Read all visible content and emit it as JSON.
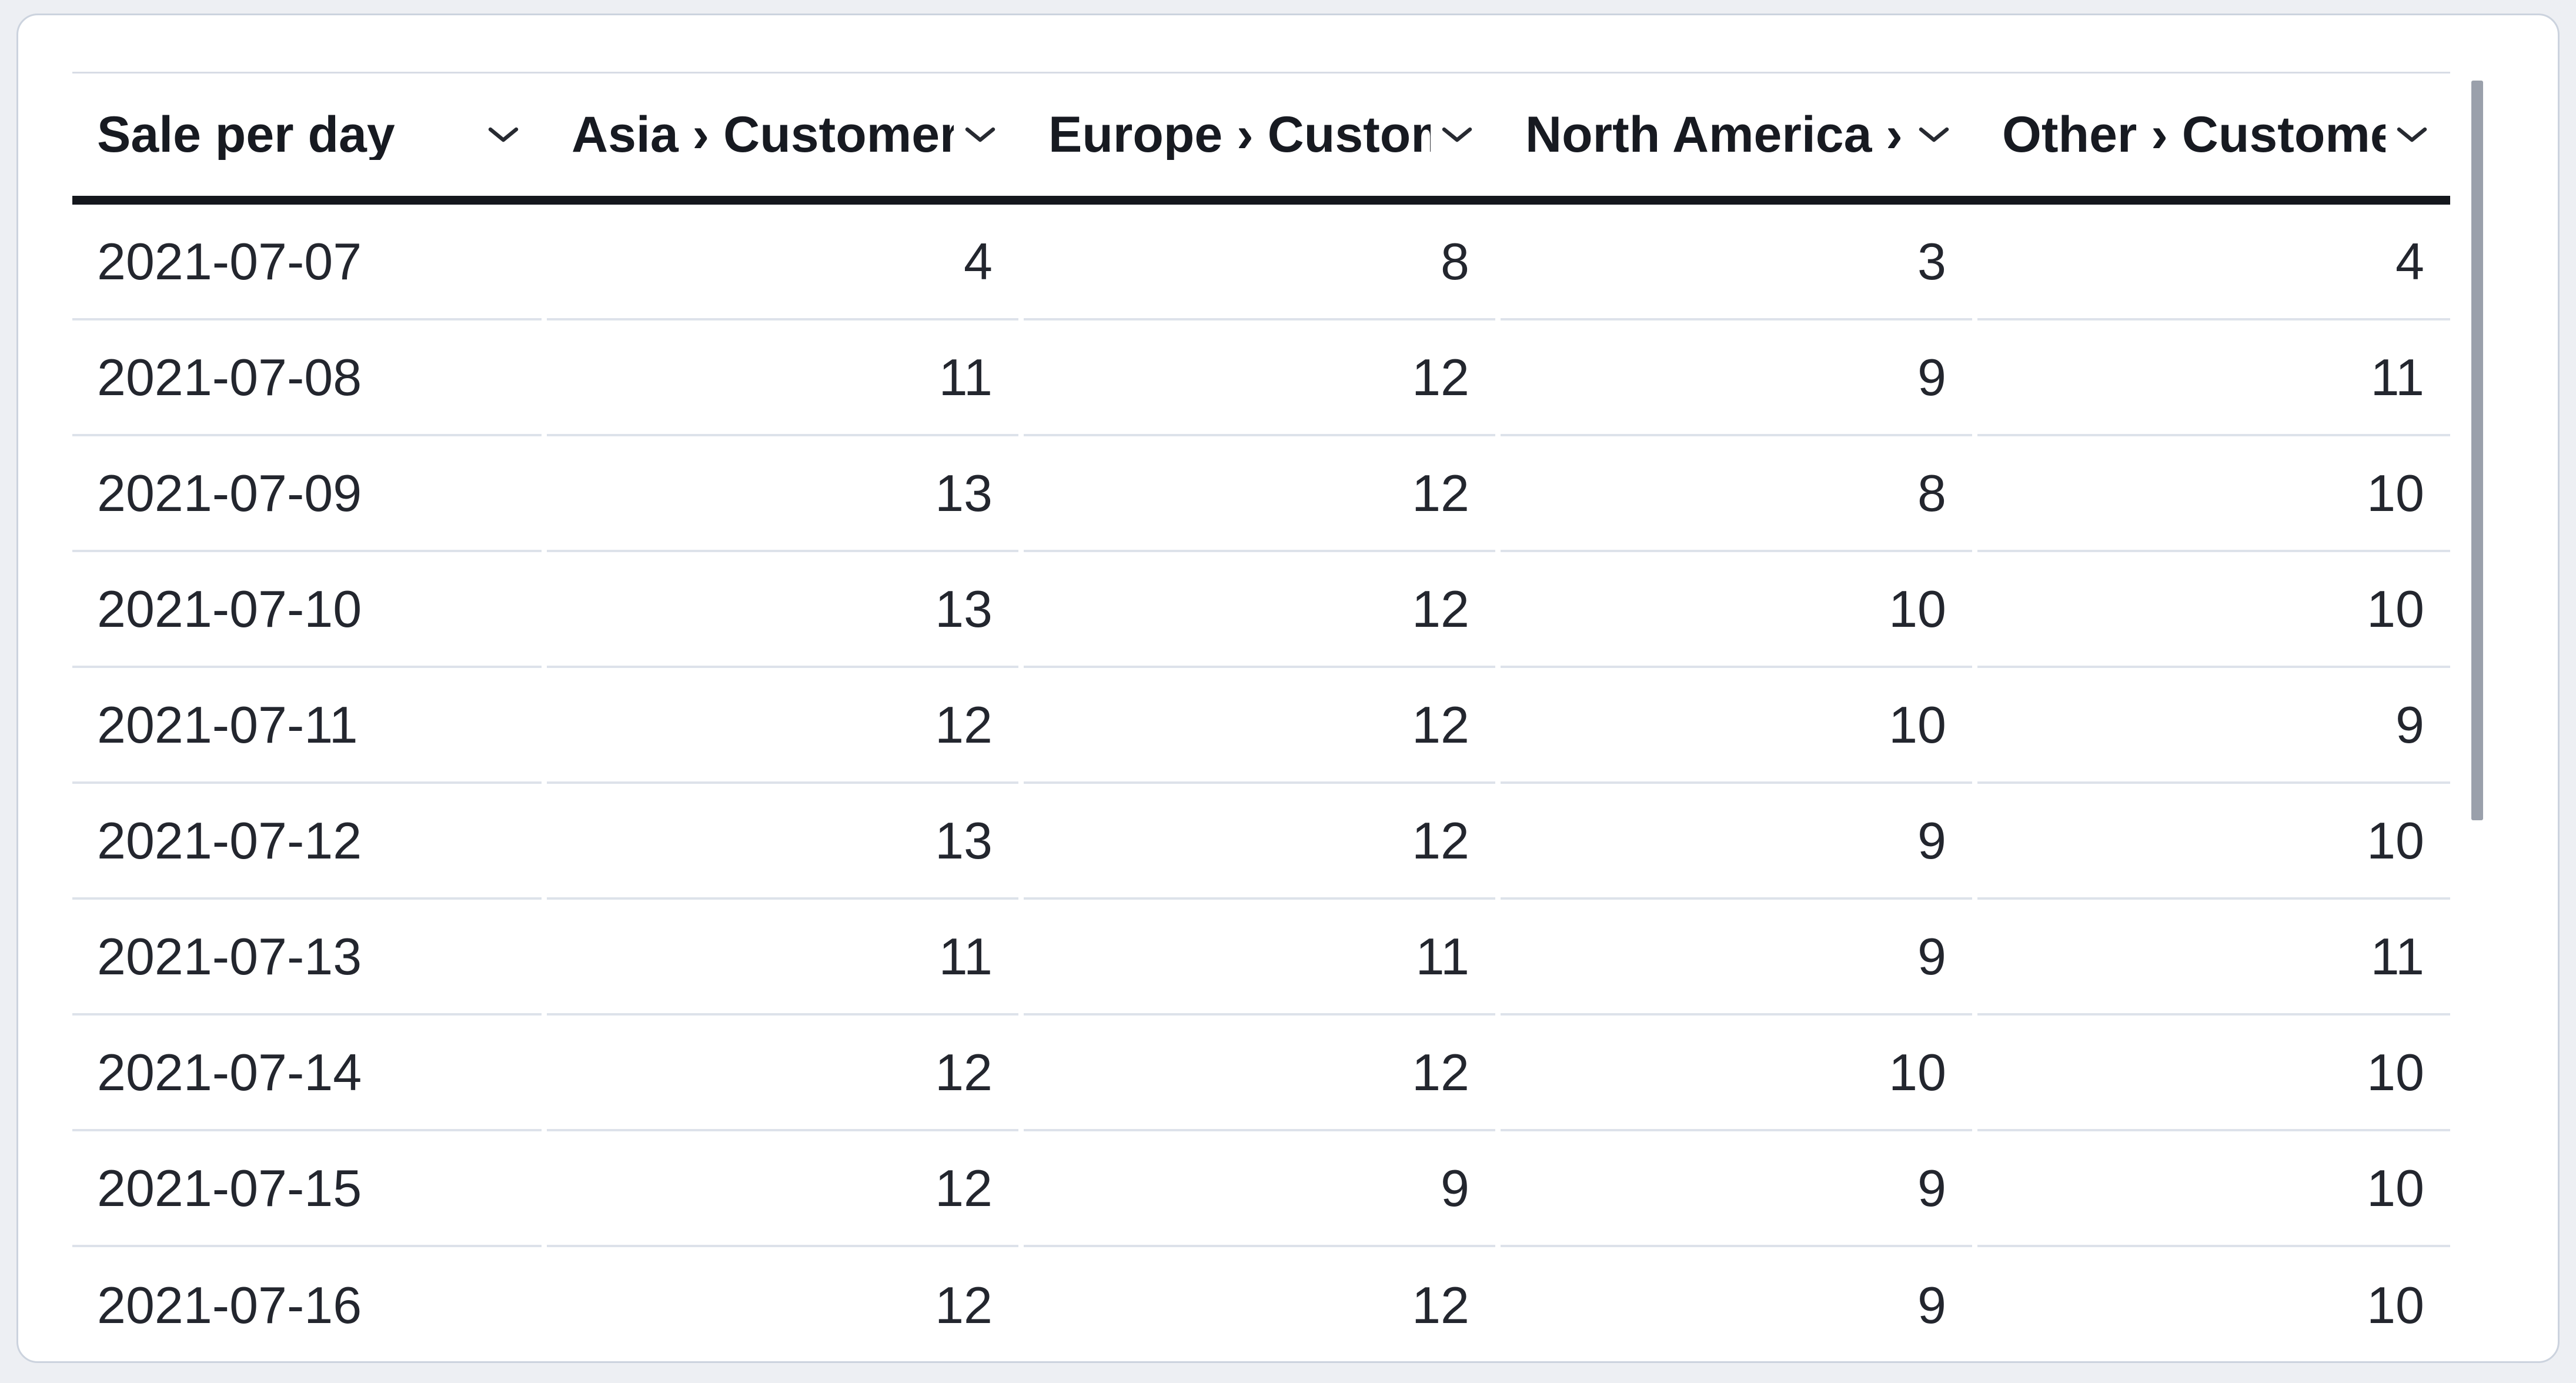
{
  "table": {
    "columns": [
      {
        "label": "Sale per day",
        "align": "left"
      },
      {
        "label": "Asia › Customers",
        "align": "right"
      },
      {
        "label": "Europe › Customers",
        "align": "right"
      },
      {
        "label": "North America › Customers",
        "align": "right"
      },
      {
        "label": "Other › Customers",
        "align": "right"
      }
    ],
    "rows": [
      [
        "2021-07-07",
        "4",
        "8",
        "3",
        "4"
      ],
      [
        "2021-07-08",
        "11",
        "12",
        "9",
        "11"
      ],
      [
        "2021-07-09",
        "13",
        "12",
        "8",
        "10"
      ],
      [
        "2021-07-10",
        "13",
        "12",
        "10",
        "10"
      ],
      [
        "2021-07-11",
        "12",
        "12",
        "10",
        "9"
      ],
      [
        "2021-07-12",
        "13",
        "12",
        "9",
        "10"
      ],
      [
        "2021-07-13",
        "11",
        "11",
        "9",
        "11"
      ],
      [
        "2021-07-14",
        "12",
        "12",
        "10",
        "10"
      ],
      [
        "2021-07-15",
        "12",
        "9",
        "9",
        "10"
      ],
      [
        "2021-07-16",
        "12",
        "12",
        "9",
        "10"
      ]
    ]
  },
  "icons": {
    "header_sort": "chevron-down-icon"
  },
  "colors": {
    "page_background": "#edeff3",
    "card_background": "#ffffff",
    "card_border": "#ccd3de",
    "header_text": "#171a21",
    "header_rule": "#14171d",
    "top_rule": "#d7dce5",
    "cell_text": "#23262e",
    "row_separator": "#dde2ea",
    "scrollbar_thumb": "#9aa0ab"
  }
}
